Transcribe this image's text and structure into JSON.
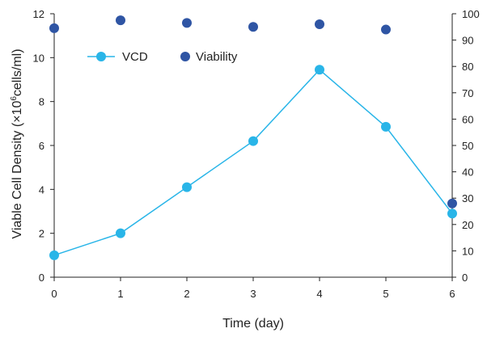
{
  "chart_data": {
    "type": "line",
    "x": [
      0,
      1,
      2,
      3,
      4,
      5,
      6
    ],
    "xlabel": "Time (day)",
    "xlim": [
      0,
      6
    ],
    "xticks": [
      "0",
      "1",
      "2",
      "3",
      "4",
      "5",
      "6"
    ],
    "ylabel_left_main": "Viable Cell Density  (×10",
    "ylabel_left_sup": "6",
    "ylabel_left_tail": "cells/ml)",
    "ylim_left": [
      0,
      12
    ],
    "yticks_left": [
      "0",
      "2",
      "4",
      "6",
      "8",
      "10",
      "12"
    ],
    "ylim_right": [
      0,
      100
    ],
    "yticks_right": [
      "0",
      "10",
      "20",
      "30",
      "40",
      "50",
      "60",
      "70",
      "80",
      "90",
      "100"
    ],
    "grid": false,
    "legend_position": "top-left",
    "series": [
      {
        "name": "VCD",
        "axis": "left",
        "style": "line-marker",
        "color": "#29b5e8",
        "values": [
          1.0,
          2.0,
          4.1,
          6.2,
          9.45,
          6.85,
          2.9
        ]
      },
      {
        "name": "Viability",
        "axis": "right",
        "style": "marker",
        "color": "#2f55a4",
        "values": [
          94.5,
          97.5,
          96.5,
          95,
          96,
          94,
          28
        ]
      }
    ]
  }
}
